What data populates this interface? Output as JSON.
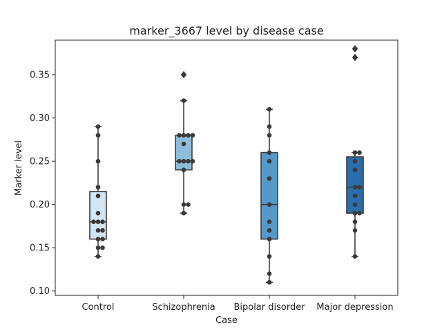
{
  "chart_data": {
    "type": "box",
    "title": "marker_3667 level by disease case",
    "xlabel": "Case",
    "ylabel": "Marker level",
    "ylim": [
      0.095,
      0.39
    ],
    "yticks": [
      "0.10",
      "0.15",
      "0.20",
      "0.25",
      "0.30",
      "0.35"
    ],
    "grid": false,
    "categories": [
      "Control",
      "Schizophrenia",
      "Bipolar disorder",
      "Major depression"
    ],
    "colors": [
      "#d3e4f3",
      "#8fbcdb",
      "#5698c8",
      "#2a6ead"
    ],
    "boxes": [
      {
        "q1": 0.16,
        "median": 0.18,
        "q3": 0.215,
        "whisker_low": 0.14,
        "whisker_high": 0.29,
        "outliers": []
      },
      {
        "q1": 0.24,
        "median": 0.25,
        "q3": 0.28,
        "whisker_low": 0.19,
        "whisker_high": 0.32,
        "outliers": [
          0.35
        ]
      },
      {
        "q1": 0.16,
        "median": 0.2,
        "q3": 0.26,
        "whisker_low": 0.11,
        "whisker_high": 0.31,
        "outliers": []
      },
      {
        "q1": 0.19,
        "median": 0.22,
        "q3": 0.255,
        "whisker_low": 0.14,
        "whisker_high": 0.26,
        "outliers": [
          0.37,
          0.38
        ]
      }
    ],
    "points": [
      [
        0.29,
        0.28,
        0.25,
        0.22,
        0.21,
        0.19,
        0.18,
        0.18,
        0.18,
        0.17,
        0.17,
        0.16,
        0.16,
        0.15,
        0.15,
        0.14
      ],
      [
        0.35,
        0.32,
        0.28,
        0.28,
        0.28,
        0.28,
        0.27,
        0.25,
        0.25,
        0.25,
        0.25,
        0.24,
        0.2,
        0.2,
        0.19
      ],
      [
        0.31,
        0.29,
        0.28,
        0.26,
        0.25,
        0.23,
        0.2,
        0.18,
        0.17,
        0.16,
        0.14,
        0.12,
        0.11
      ],
      [
        0.38,
        0.37,
        0.26,
        0.26,
        0.25,
        0.24,
        0.22,
        0.22,
        0.21,
        0.2,
        0.19,
        0.19,
        0.18,
        0.17,
        0.14
      ]
    ]
  }
}
